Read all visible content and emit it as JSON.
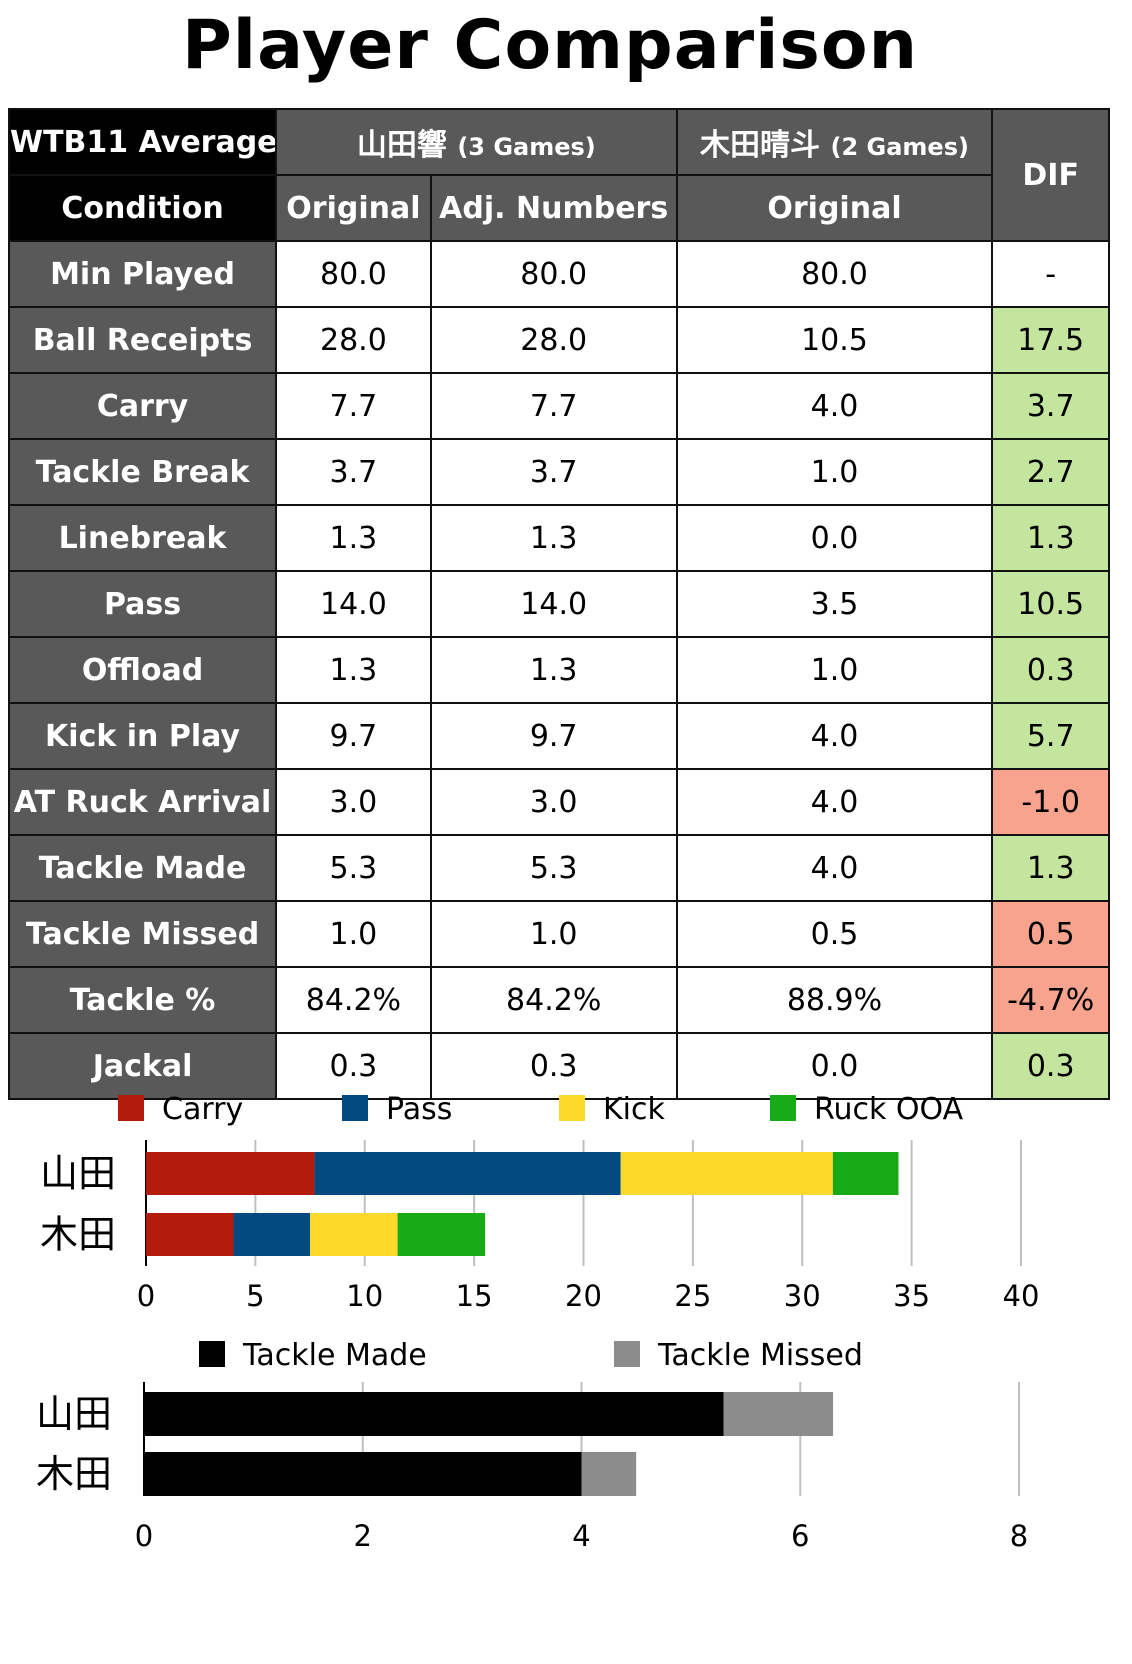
{
  "title": "Player Comparison",
  "table": {
    "corner_line1": "WTB11 Average",
    "corner_line2": "Condition",
    "player1": {
      "name": "山田響",
      "games": "(3 Games)"
    },
    "player2": {
      "name": "木田晴斗",
      "games": "(2 Games)"
    },
    "dif_label": "DIF",
    "sub_headers": [
      "Original",
      "Adj. Numbers",
      "Original"
    ],
    "rows": [
      {
        "label": "Min Played",
        "p1_orig": "80.0",
        "p1_adj": "80.0",
        "p2_orig": "80.0",
        "dif": "-",
        "dif_sign": "neutral"
      },
      {
        "label": "Ball Receipts",
        "p1_orig": "28.0",
        "p1_adj": "28.0",
        "p2_orig": "10.5",
        "dif": "17.5",
        "dif_sign": "pos"
      },
      {
        "label": "Carry",
        "p1_orig": "7.7",
        "p1_adj": "7.7",
        "p2_orig": "4.0",
        "dif": "3.7",
        "dif_sign": "pos"
      },
      {
        "label": "Tackle Break",
        "p1_orig": "3.7",
        "p1_adj": "3.7",
        "p2_orig": "1.0",
        "dif": "2.7",
        "dif_sign": "pos"
      },
      {
        "label": "Linebreak",
        "p1_orig": "1.3",
        "p1_adj": "1.3",
        "p2_orig": "0.0",
        "dif": "1.3",
        "dif_sign": "pos"
      },
      {
        "label": "Pass",
        "p1_orig": "14.0",
        "p1_adj": "14.0",
        "p2_orig": "3.5",
        "dif": "10.5",
        "dif_sign": "pos"
      },
      {
        "label": "Offload",
        "p1_orig": "1.3",
        "p1_adj": "1.3",
        "p2_orig": "1.0",
        "dif": "0.3",
        "dif_sign": "pos"
      },
      {
        "label": "Kick in Play",
        "p1_orig": "9.7",
        "p1_adj": "9.7",
        "p2_orig": "4.0",
        "dif": "5.7",
        "dif_sign": "pos"
      },
      {
        "label": "AT Ruck Arrival",
        "p1_orig": "3.0",
        "p1_adj": "3.0",
        "p2_orig": "4.0",
        "dif": "-1.0",
        "dif_sign": "neg"
      },
      {
        "label": "Tackle Made",
        "p1_orig": "5.3",
        "p1_adj": "5.3",
        "p2_orig": "4.0",
        "dif": "1.3",
        "dif_sign": "pos"
      },
      {
        "label": "Tackle Missed",
        "p1_orig": "1.0",
        "p1_adj": "1.0",
        "p2_orig": "0.5",
        "dif": "0.5",
        "dif_sign": "neg"
      },
      {
        "label": "Tackle %",
        "p1_orig": "84.2%",
        "p1_adj": "84.2%",
        "p2_orig": "88.9%",
        "dif": "-4.7%",
        "dif_sign": "neg"
      },
      {
        "label": "Jackal",
        "p1_orig": "0.3",
        "p1_adj": "0.3",
        "p2_orig": "0.0",
        "dif": "0.3",
        "dif_sign": "pos"
      }
    ]
  },
  "chart_data": [
    {
      "type": "bar",
      "orientation": "horizontal",
      "stacked": true,
      "categories": [
        "山田",
        "木田"
      ],
      "series": [
        {
          "name": "Carry",
          "color": "#b31b0c",
          "values": [
            7.7,
            4.0
          ]
        },
        {
          "name": "Pass",
          "color": "#034a80",
          "values": [
            14.0,
            3.5
          ]
        },
        {
          "name": "Kick",
          "color": "#fdd92a",
          "values": [
            9.7,
            4.0
          ]
        },
        {
          "name": "Ruck OOA",
          "color": "#18ab18",
          "values": [
            3.0,
            4.0
          ]
        }
      ],
      "xlim": [
        0,
        40
      ],
      "xticks": [
        0,
        5,
        10,
        15,
        20,
        25,
        30,
        35,
        40
      ],
      "grid": "vertical",
      "legend": "top"
    },
    {
      "type": "bar",
      "orientation": "horizontal",
      "stacked": true,
      "categories": [
        "山田",
        "木田"
      ],
      "series": [
        {
          "name": "Tackle Made",
          "color": "#000000",
          "values": [
            5.3,
            4.0
          ]
        },
        {
          "name": "Tackle Missed",
          "color": "#8c8c8c",
          "values": [
            1.0,
            0.5
          ]
        }
      ],
      "xlim": [
        0,
        8
      ],
      "xticks": [
        0,
        2,
        4,
        6,
        8
      ],
      "grid": "vertical",
      "legend": "top"
    }
  ]
}
